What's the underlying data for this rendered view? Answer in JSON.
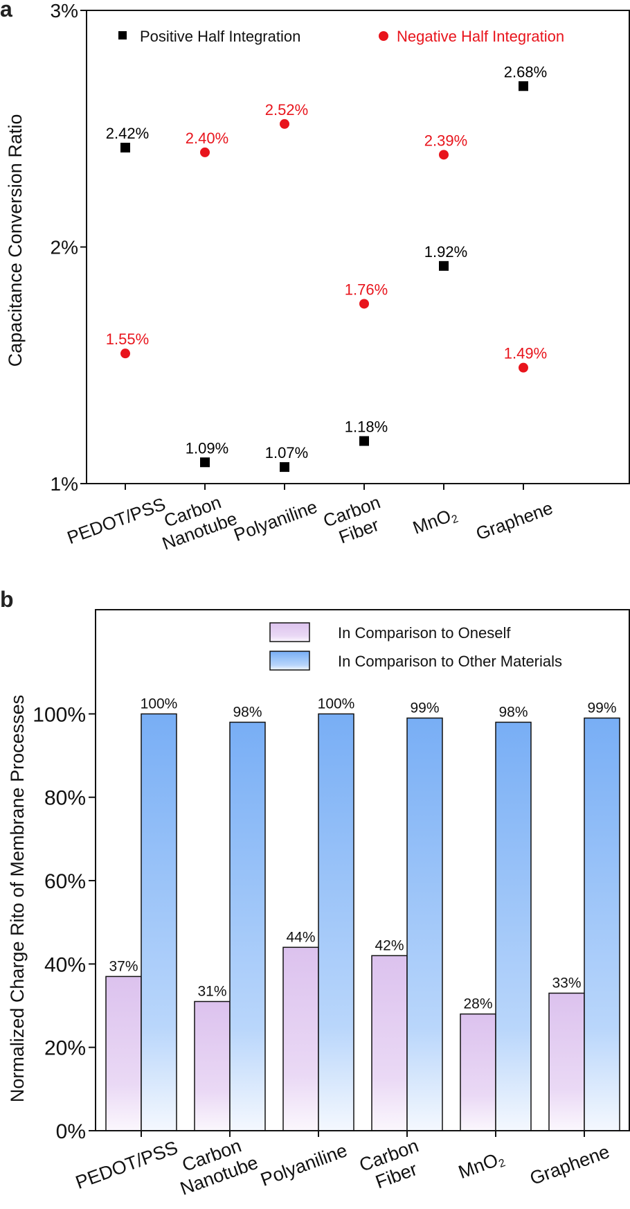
{
  "chart_data": [
    {
      "panel_label": "a",
      "type": "scatter",
      "ylabel": "Capacitance Conversion Ratio",
      "xlabel": "",
      "ylim": [
        1,
        3
      ],
      "y_ticks": [
        "1%",
        "2%",
        "3%"
      ],
      "categories": [
        "PEDOT/PSS",
        "Carbon Nanotube",
        "Polyaniline",
        "Carbon Fiber",
        "MnO2",
        "Graphene"
      ],
      "series": [
        {
          "name": "Positive Half Integration",
          "color": "#000000",
          "marker": "square",
          "values": [
            2.42,
            1.09,
            1.07,
            1.18,
            1.92,
            2.68
          ],
          "labels": [
            "2.42%",
            "1.09%",
            "1.07%",
            "1.18%",
            "1.92%",
            "2.68%"
          ]
        },
        {
          "name": "Negative Half Integration",
          "color": "#e8141c",
          "marker": "circle",
          "values": [
            1.55,
            2.4,
            2.52,
            1.76,
            2.39,
            1.49
          ],
          "labels": [
            "1.55%",
            "2.40%",
            "2.52%",
            "1.76%",
            "2.39%",
            "1.49%"
          ]
        }
      ],
      "legend_position": "top"
    },
    {
      "panel_label": "b",
      "type": "bar",
      "ylabel": "Normalized Charge Rito of Membrane Processes",
      "xlabel": "",
      "ylim": [
        0,
        125
      ],
      "y_ticks": [
        "0%",
        "20%",
        "40%",
        "60%",
        "80%",
        "100%"
      ],
      "categories": [
        "PEDOT/PSS",
        "Carbon Nanotube",
        "Polyaniline",
        "Carbon Fiber",
        "MnO2",
        "Graphene"
      ],
      "series": [
        {
          "name": "In Comparison to Oneself",
          "color": "#e0c8ee",
          "values": [
            37,
            31,
            44,
            42,
            28,
            33
          ],
          "labels": [
            "37%",
            "31%",
            "44%",
            "42%",
            "28%",
            "33%"
          ]
        },
        {
          "name": "In Comparison to Other Materials",
          "color": "#7fb3f5",
          "values": [
            100,
            98,
            100,
            99,
            98,
            99
          ],
          "labels": [
            "100%",
            "98%",
            "100%",
            "99%",
            "98%",
            "99%"
          ]
        }
      ],
      "legend_position": "top-right"
    }
  ]
}
